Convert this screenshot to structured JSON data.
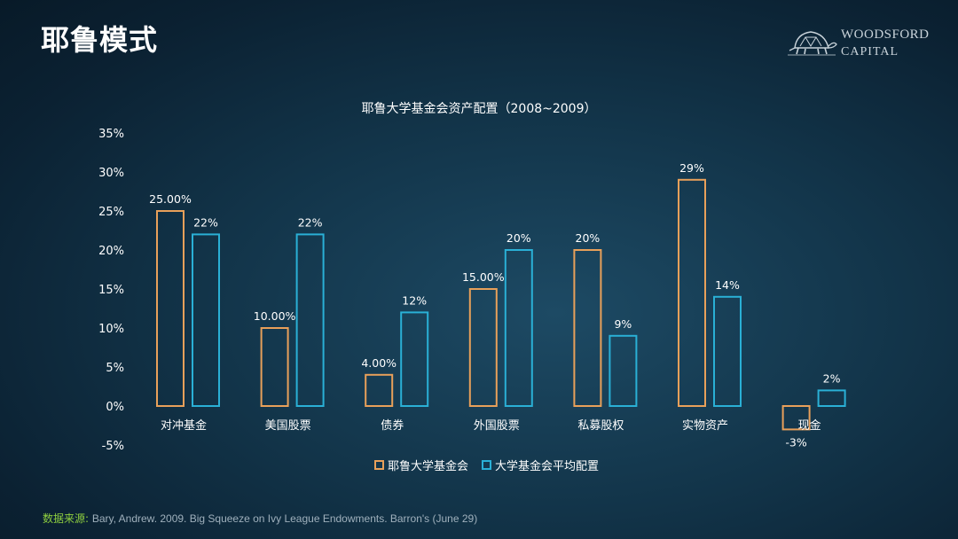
{
  "slide": {
    "title": "耶鲁模式"
  },
  "logo": {
    "line1": "WOODSFORD",
    "line2": "CAPITAL",
    "icon": "tortoise-icon"
  },
  "source": {
    "label": "数据来源:",
    "text": "Bary, Andrew. 2009. Big Squeeze on Ivy League Endowments. Barron's (June 29)"
  },
  "colors": {
    "yale": "#e8a05a",
    "avg": "#2ab0d6",
    "source_label": "#8fcf3f"
  },
  "chart_data": {
    "type": "bar",
    "title": "耶鲁大学基金会资产配置（2008~2009）",
    "categories": [
      "对冲基金",
      "美国股票",
      "债券",
      "外国股票",
      "私募股权",
      "实物资产",
      "现金"
    ],
    "series": [
      {
        "name": "耶鲁大学基金会",
        "values": [
          25,
          10,
          4,
          15,
          20,
          29,
          -3
        ],
        "labels": [
          "25.00%",
          "10.00%",
          "4.00%",
          "15.00%",
          "20%",
          "29%",
          "-3%"
        ],
        "color": "#e8a05a"
      },
      {
        "name": "大学基金会平均配置",
        "values": [
          22,
          22,
          12,
          20,
          9,
          14,
          2
        ],
        "labels": [
          "22%",
          "22%",
          "12%",
          "20%",
          "9%",
          "14%",
          "2%"
        ],
        "color": "#2ab0d6"
      }
    ],
    "y_ticks": [
      "35%",
      "30%",
      "25%",
      "20%",
      "15%",
      "10%",
      "5%",
      "0%",
      "-5%"
    ],
    "ylim": [
      -5,
      35
    ],
    "grid": false,
    "legend": "bottom"
  }
}
